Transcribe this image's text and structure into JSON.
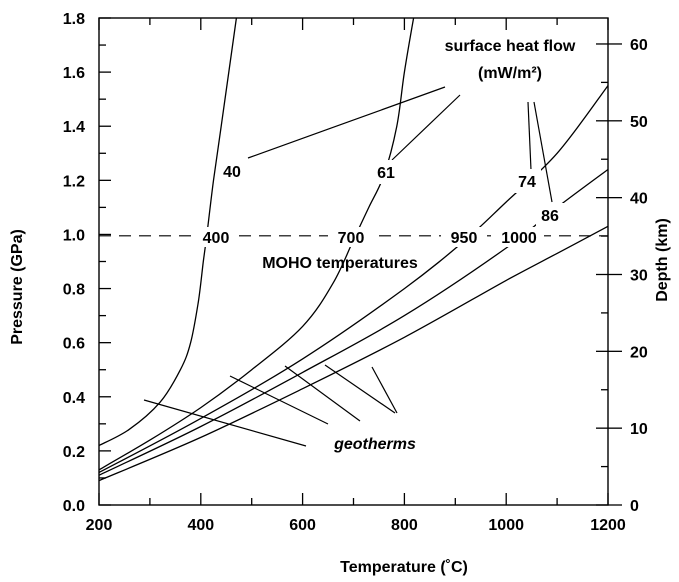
{
  "chart_data": {
    "type": "line",
    "xlabel": "Temperature (˚C)",
    "ylabel": "Pressure (GPa)",
    "y2label": "Depth (km)",
    "xlim": [
      200,
      1200
    ],
    "ylim": [
      0,
      1.8
    ],
    "y2lim": [
      0,
      64
    ],
    "x_ticks": [
      200,
      400,
      600,
      800,
      1000,
      1200
    ],
    "y_ticks": [
      0.0,
      0.2,
      0.4,
      0.6,
      0.8,
      1.0,
      1.2,
      1.4,
      1.6,
      1.8
    ],
    "y_tick_labels": [
      "0.0",
      "0.2",
      "0.4",
      "0.6",
      "0.8",
      "1.0",
      "1.2",
      "1.4",
      "1.6",
      "1.8"
    ],
    "y2_ticks": [
      0,
      10,
      20,
      30,
      40,
      50,
      60
    ],
    "grid": false,
    "series": [
      {
        "name": "40",
        "points": [
          [
            200,
            0.22
          ],
          [
            260,
            0.28
          ],
          [
            320,
            0.38
          ],
          [
            360,
            0.5
          ],
          [
            380,
            0.6
          ],
          [
            395,
            0.75
          ],
          [
            405,
            0.9
          ],
          [
            412,
            1.0
          ],
          [
            425,
            1.2
          ],
          [
            440,
            1.4
          ],
          [
            455,
            1.6
          ],
          [
            470,
            1.8
          ]
        ]
      },
      {
        "name": "61",
        "points": [
          [
            200,
            0.13
          ],
          [
            300,
            0.24
          ],
          [
            400,
            0.36
          ],
          [
            500,
            0.5
          ],
          [
            600,
            0.66
          ],
          [
            660,
            0.82
          ],
          [
            700,
            0.98
          ],
          [
            730,
            1.1
          ],
          [
            760,
            1.22
          ],
          [
            785,
            1.4
          ],
          [
            800,
            1.6
          ],
          [
            818,
            1.8
          ]
        ]
      },
      {
        "name": "74",
        "points": [
          [
            200,
            0.12
          ],
          [
            400,
            0.32
          ],
          [
            600,
            0.54
          ],
          [
            800,
            0.8
          ],
          [
            920,
            0.98
          ],
          [
            1000,
            1.12
          ],
          [
            1100,
            1.3
          ],
          [
            1200,
            1.55
          ]
        ]
      },
      {
        "name": "86",
        "points": [
          [
            200,
            0.11
          ],
          [
            400,
            0.29
          ],
          [
            600,
            0.49
          ],
          [
            800,
            0.7
          ],
          [
            1000,
            0.95
          ],
          [
            1100,
            1.1
          ],
          [
            1200,
            1.24
          ]
        ]
      },
      {
        "name": "",
        "points": [
          [
            200,
            0.09
          ],
          [
            400,
            0.25
          ],
          [
            600,
            0.43
          ],
          [
            800,
            0.62
          ],
          [
            1000,
            0.83
          ],
          [
            1100,
            0.93
          ],
          [
            1200,
            1.03
          ]
        ]
      }
    ],
    "moho_line": {
      "y": 0.995
    },
    "annotations": {
      "surface_heat_flow_line1": "surface heat flow",
      "surface_heat_flow_line2": "(mW/m²)",
      "curve_labels": [
        "40",
        "61",
        "74",
        "86"
      ],
      "moho_temps": [
        "400",
        "700",
        "950",
        "1000"
      ],
      "moho_label": "MOHO temperatures",
      "geotherms_label": "geotherms"
    }
  }
}
